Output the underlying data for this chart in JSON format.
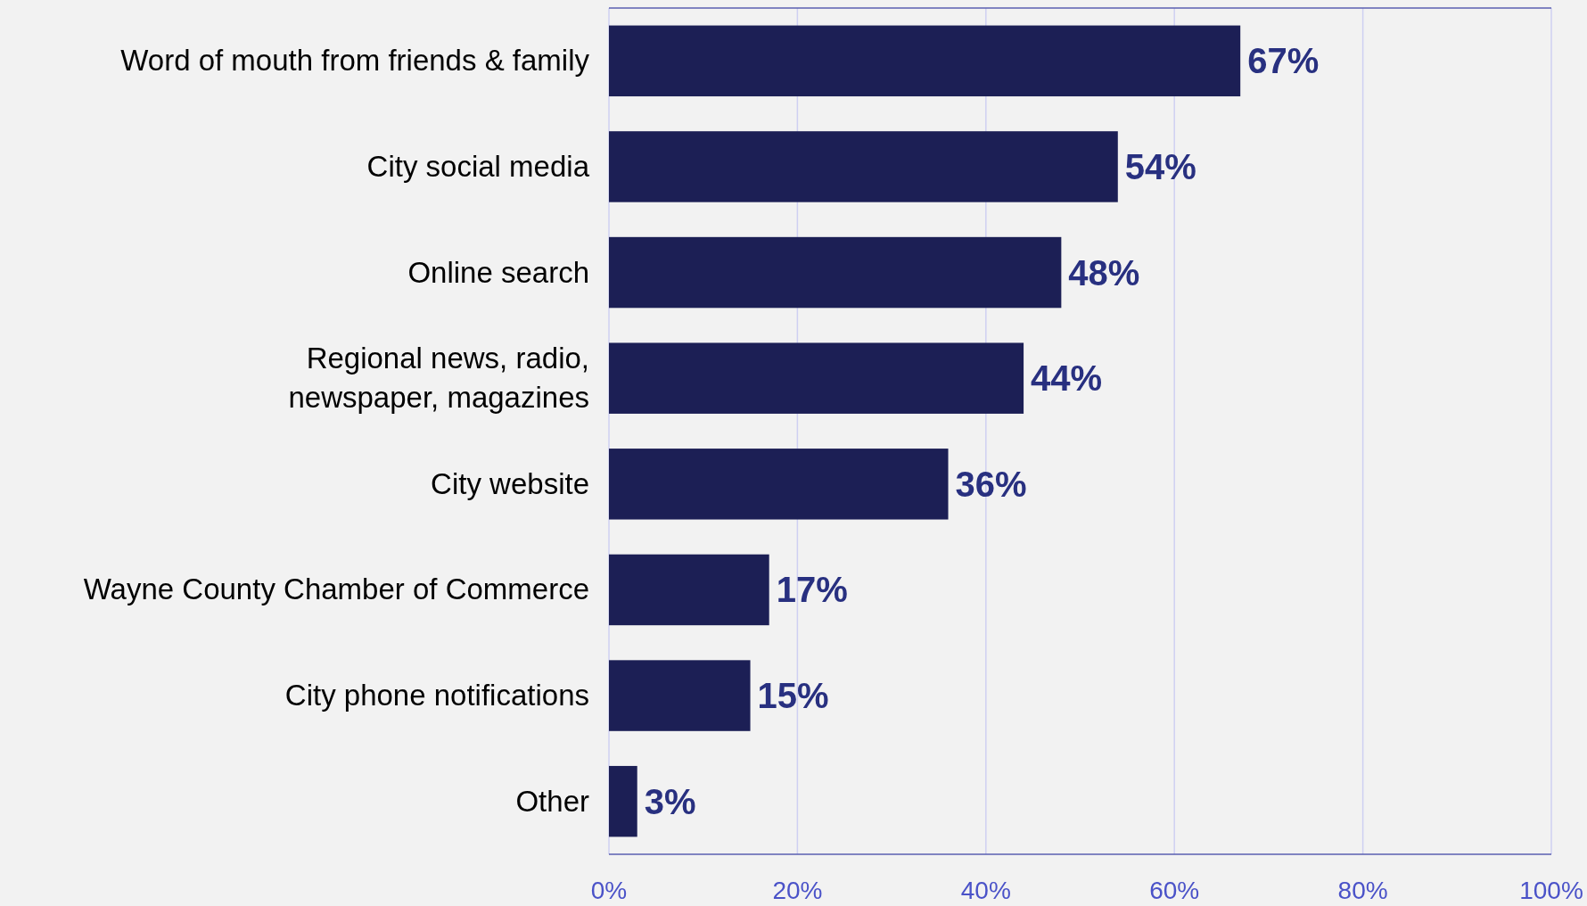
{
  "chart_data": {
    "type": "bar",
    "orientation": "horizontal",
    "categories": [
      "Word of mouth from friends & family",
      "City social media",
      "Online search",
      "Regional news, radio,\nnewspaper, magazines",
      "City website",
      "Wayne County Chamber of Commerce",
      "City phone notifications",
      "Other"
    ],
    "values": [
      67,
      54,
      48,
      44,
      36,
      17,
      15,
      3
    ],
    "color": "#1c1f55",
    "value_labels": [
      "67%",
      "54%",
      "48%",
      "44%",
      "36%",
      "17%",
      "15%",
      "3%"
    ],
    "xlim": [
      0,
      100
    ],
    "xticks": [
      {
        "value": 0,
        "label": "0%"
      },
      {
        "value": 20,
        "label": "20%"
      },
      {
        "value": 40,
        "label": "40%"
      },
      {
        "value": 60,
        "label": "60%"
      },
      {
        "value": 80,
        "label": "80%"
      },
      {
        "value": 100,
        "label": "100%"
      }
    ],
    "grid": "x"
  }
}
